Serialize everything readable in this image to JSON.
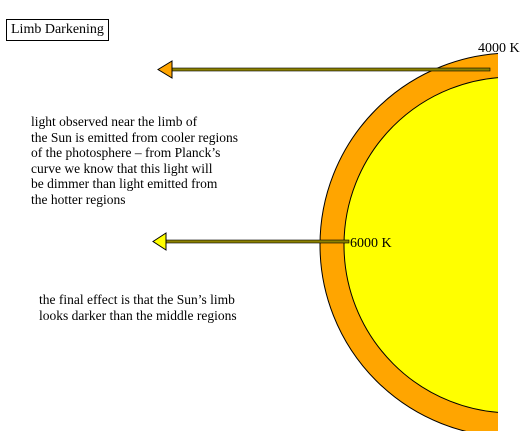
{
  "title": "Limb Darkening",
  "labels": {
    "outer_temperature": "4000 K",
    "inner_temperature": "6000 K"
  },
  "paragraph_1": [
    "light observed near the limb of",
    "the Sun is emitted from cooler regions",
    "of the photosphere – from Planck’s",
    "curve we know that this light will",
    "be dimmer than light emitted from",
    "the hotter regions"
  ],
  "paragraph_2": [
    "the final effect is that the Sun’s limb",
    "looks darker than the middle regions"
  ],
  "colors": {
    "photosphere_outer": "#FFA500",
    "photosphere_inner": "#FFFF00",
    "arrow_shaft": "#8B8000",
    "arrow_outer_head": "#FFA500",
    "arrow_inner_head": "#FFFF00"
  }
}
